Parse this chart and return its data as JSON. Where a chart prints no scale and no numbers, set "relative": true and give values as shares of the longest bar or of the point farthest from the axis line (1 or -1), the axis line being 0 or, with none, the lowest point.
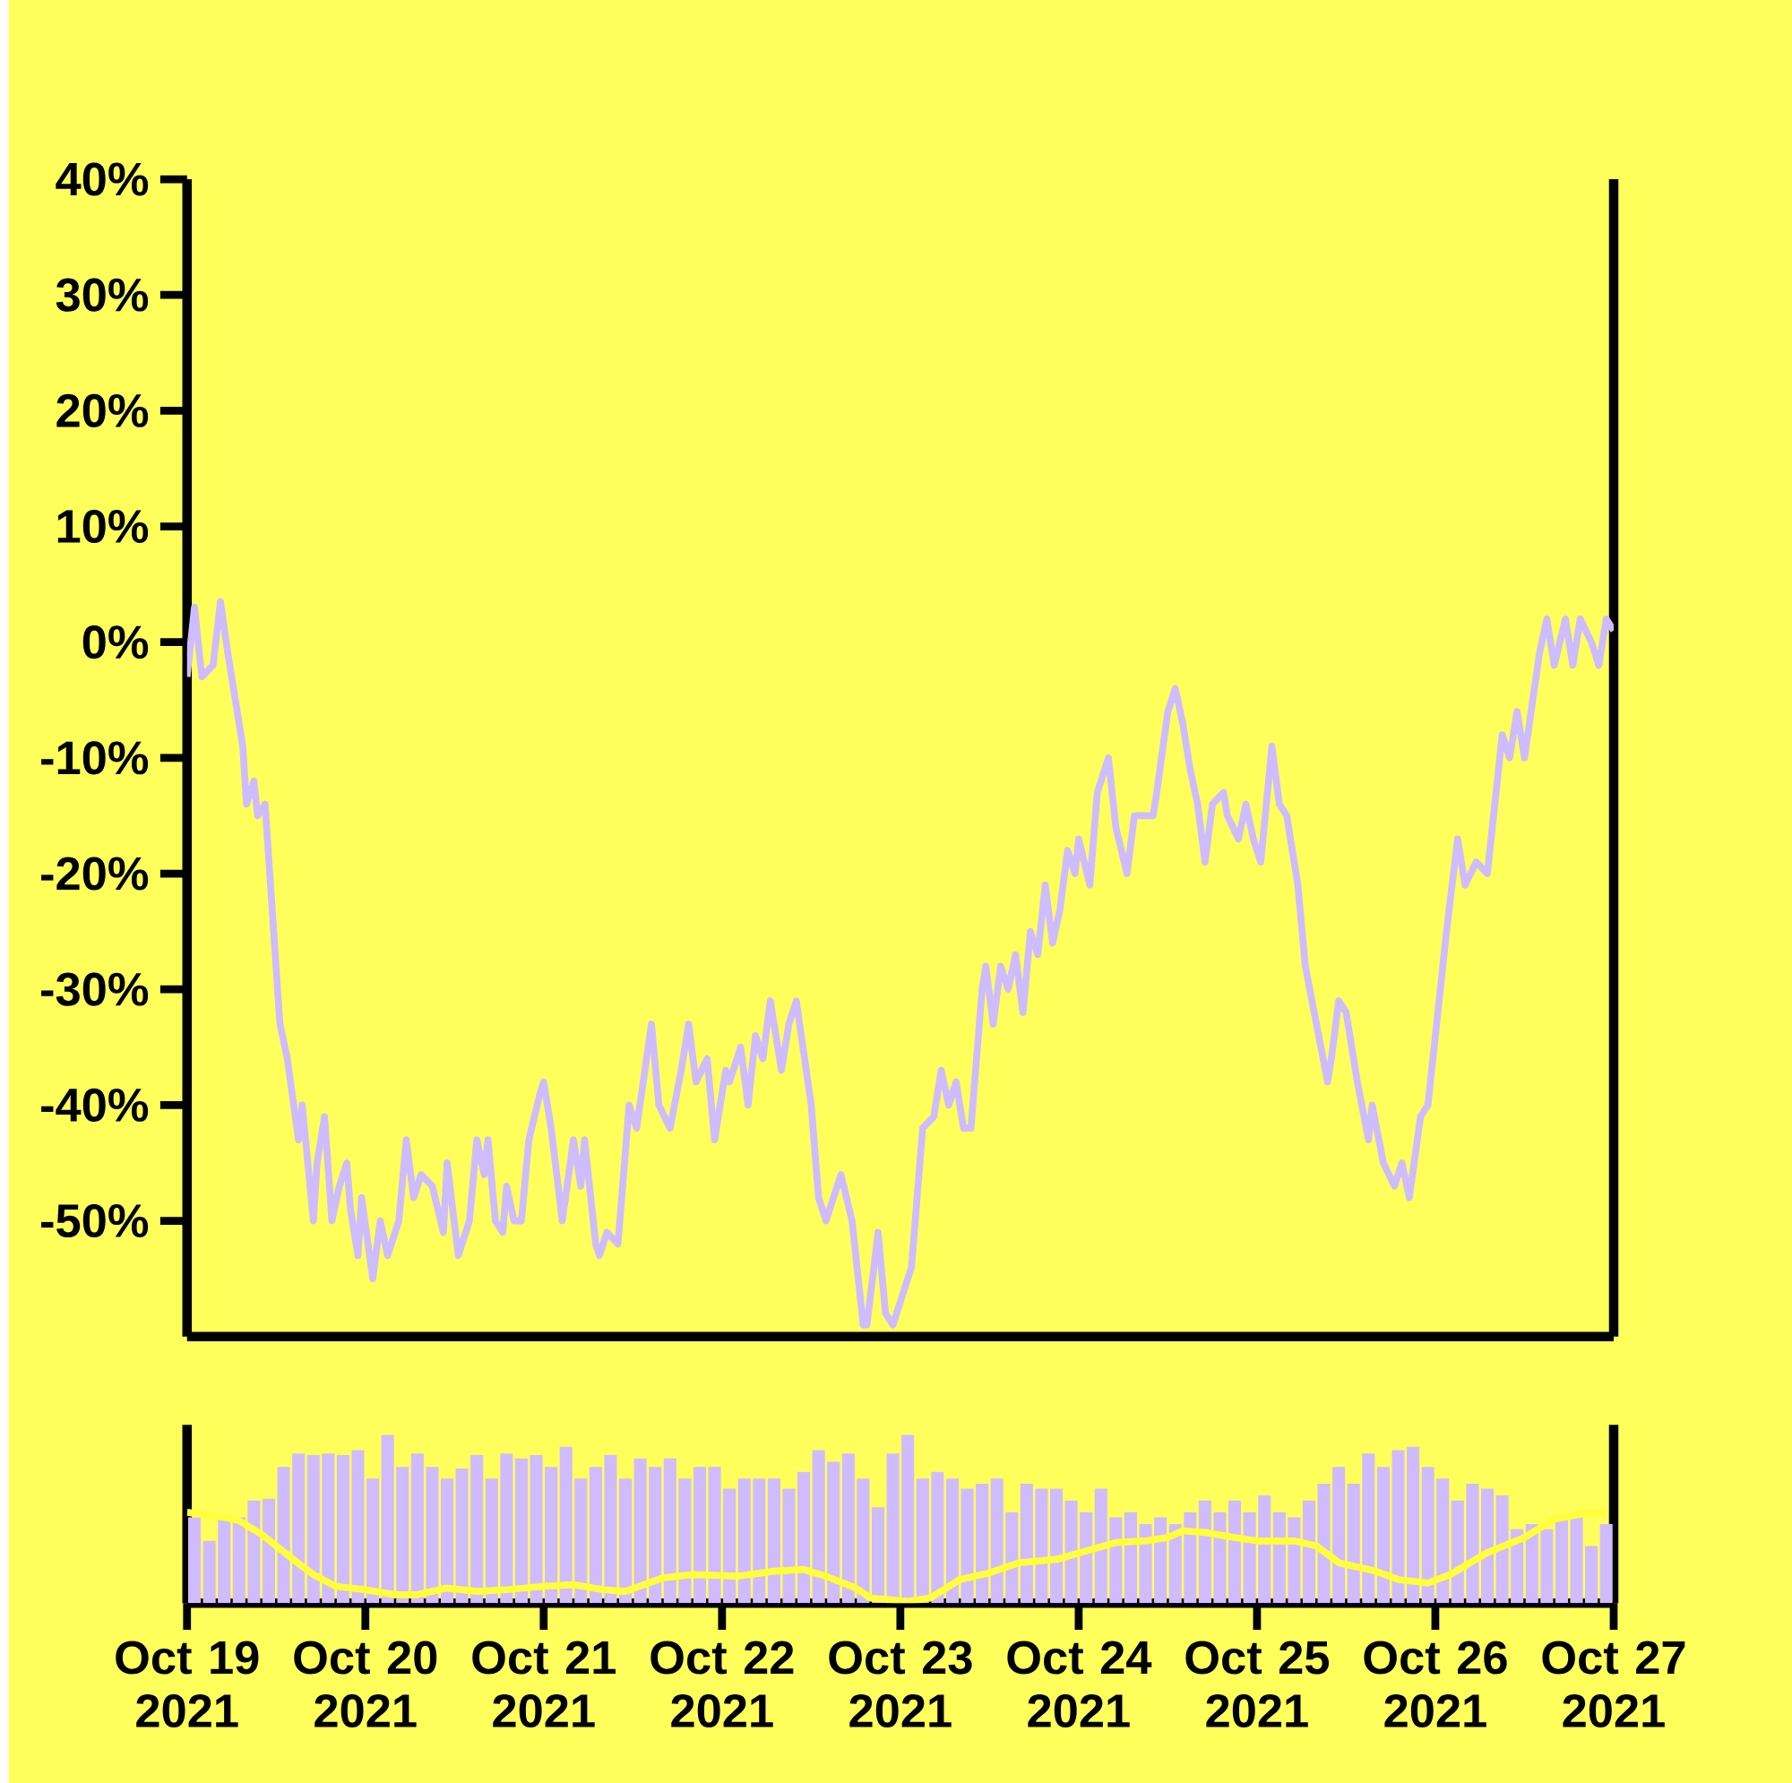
{
  "chart_data": [
    {
      "type": "line",
      "xlim": [
        "2021-10-19T00:00",
        "2021-10-27T00:00"
      ],
      "ylim": [
        -60,
        40
      ],
      "yticks": [
        {
          "value": 40,
          "label": "40%"
        },
        {
          "value": 30,
          "label": "30%"
        },
        {
          "value": 20,
          "label": "20%"
        },
        {
          "value": 10,
          "label": "10%"
        },
        {
          "value": 0,
          "label": "0%"
        },
        {
          "value": -10,
          "label": "-10%"
        },
        {
          "value": -20,
          "label": "-20%"
        },
        {
          "value": -30,
          "label": "-30%"
        },
        {
          "value": -40,
          "label": "-40%"
        },
        {
          "value": -50,
          "label": "-50%"
        }
      ],
      "tick_labels": "y",
      "series": [
        {
          "color": "#cfbcff",
          "x": [
            "2021-10-19T00:00",
            "2021-10-19T01:00",
            "2021-10-19T02:00",
            "2021-10-19T03:30",
            "2021-10-19T04:30",
            "2021-10-19T05:30",
            "2021-10-19T07:30",
            "2021-10-19T08:00",
            "2021-10-19T09:00",
            "2021-10-19T09:30",
            "2021-10-19T10:30",
            "2021-10-19T12:30",
            "2021-10-19T13:30",
            "2021-10-19T15:00",
            "2021-10-19T15:30",
            "2021-10-19T17:00",
            "2021-10-19T17:30",
            "2021-10-19T18:30",
            "2021-10-19T19:30",
            "2021-10-19T20:30",
            "2021-10-19T21:30",
            "2021-10-19T22:00",
            "2021-10-19T23:00",
            "2021-10-19T23:30",
            "2021-10-20T01:00",
            "2021-10-20T02:00",
            "2021-10-20T03:00",
            "2021-10-20T04:30",
            "2021-10-20T05:30",
            "2021-10-20T06:30",
            "2021-10-20T07:30",
            "2021-10-20T09:00",
            "2021-10-20T10:30",
            "2021-10-20T11:00",
            "2021-10-20T12:30",
            "2021-10-20T14:00",
            "2021-10-20T15:00",
            "2021-10-20T16:00",
            "2021-10-20T16:30",
            "2021-10-20T17:30",
            "2021-10-20T18:30",
            "2021-10-20T19:00",
            "2021-10-20T20:00",
            "2021-10-20T21:00",
            "2021-10-20T22:00",
            "2021-10-20T23:30",
            "2021-10-21T00:00",
            "2021-10-21T01:00",
            "2021-10-21T02:30",
            "2021-10-21T04:00",
            "2021-10-21T05:00",
            "2021-10-21T05:30",
            "2021-10-21T07:00",
            "2021-10-21T07:30",
            "2021-10-21T08:30",
            "2021-10-21T10:00",
            "2021-10-21T11:30",
            "2021-10-21T12:30",
            "2021-10-21T14:30",
            "2021-10-21T15:30",
            "2021-10-21T17:00",
            "2021-10-21T18:30",
            "2021-10-21T19:30",
            "2021-10-21T20:30",
            "2021-10-21T22:00",
            "2021-10-21T23:00",
            "2021-10-22T00:30",
            "2021-10-22T01:00",
            "2021-10-22T02:30",
            "2021-10-22T03:30",
            "2021-10-22T04:30",
            "2021-10-22T05:30",
            "2021-10-22T06:30",
            "2021-10-22T08:00",
            "2021-10-22T09:00",
            "2021-10-22T10:00",
            "2021-10-22T12:00",
            "2021-10-22T13:00",
            "2021-10-22T14:00",
            "2021-10-22T16:00",
            "2021-10-22T17:30",
            "2021-10-22T19:00",
            "2021-10-22T19:30",
            "2021-10-22T21:00",
            "2021-10-22T22:00",
            "2021-10-22T23:00",
            "2021-10-23T00:00",
            "2021-10-23T01:30",
            "2021-10-23T03:00",
            "2021-10-23T04:30",
            "2021-10-23T05:30",
            "2021-10-23T06:30",
            "2021-10-23T07:30",
            "2021-10-23T08:30",
            "2021-10-23T09:30",
            "2021-10-23T11:00",
            "2021-10-23T11:30",
            "2021-10-23T12:30",
            "2021-10-23T13:30",
            "2021-10-23T14:30",
            "2021-10-23T15:30",
            "2021-10-23T16:30",
            "2021-10-23T17:30",
            "2021-10-23T18:30",
            "2021-10-23T19:30",
            "2021-10-23T20:30",
            "2021-10-23T21:30",
            "2021-10-23T22:30",
            "2021-10-23T23:30",
            "2021-10-24T00:00",
            "2021-10-24T01:30",
            "2021-10-24T02:30",
            "2021-10-24T03:00",
            "2021-10-24T04:00",
            "2021-10-24T05:00",
            "2021-10-24T06:30",
            "2021-10-24T07:30",
            "2021-10-24T10:00",
            "2021-10-24T10:30",
            "2021-10-24T12:00",
            "2021-10-24T13:00",
            "2021-10-24T14:00",
            "2021-10-24T15:00",
            "2021-10-24T16:00",
            "2021-10-24T17:00",
            "2021-10-24T18:00",
            "2021-10-24T19:30",
            "2021-10-24T20:00",
            "2021-10-24T21:30",
            "2021-10-24T22:30",
            "2021-10-24T23:30",
            "2021-10-25T00:30",
            "2021-10-25T02:00",
            "2021-10-25T03:00",
            "2021-10-25T04:00",
            "2021-10-25T05:30",
            "2021-10-25T06:30",
            "2021-10-25T08:00",
            "2021-10-25T09:30",
            "2021-10-25T10:00",
            "2021-10-25T11:00",
            "2021-10-25T12:00",
            "2021-10-25T13:30",
            "2021-10-25T15:00",
            "2021-10-25T15:30",
            "2021-10-25T17:00",
            "2021-10-25T18:30",
            "2021-10-25T19:30",
            "2021-10-25T20:30",
            "2021-10-25T22:00",
            "2021-10-25T23:00",
            "2021-10-26T00:30",
            "2021-10-26T01:30",
            "2021-10-26T03:00",
            "2021-10-26T04:00",
            "2021-10-26T05:30",
            "2021-10-26T07:00",
            "2021-10-26T09:00",
            "2021-10-26T10:00",
            "2021-10-26T11:00",
            "2021-10-26T12:00",
            "2021-10-26T14:00",
            "2021-10-26T15:00",
            "2021-10-26T16:00",
            "2021-10-26T17:30",
            "2021-10-26T18:30",
            "2021-10-26T19:30",
            "2021-10-26T21:00",
            "2021-10-26T22:00",
            "2021-10-26T23:00",
            "2021-10-27T00:00"
          ],
          "values": [
            -3,
            3,
            -3,
            -2,
            3.5,
            -1,
            -9,
            -14,
            -12,
            -15,
            -14,
            -33,
            -36,
            -43,
            -40,
            -50,
            -45,
            -41,
            -50,
            -47,
            -45,
            -49,
            -53,
            -48,
            -55,
            -50,
            -53,
            -50,
            -43,
            -48,
            -46,
            -47,
            -51,
            -45,
            -53,
            -50,
            -43,
            -46,
            -43,
            -50,
            -51,
            -47,
            -50,
            -50,
            -43,
            -39,
            -38,
            -42,
            -50,
            -43,
            -47,
            -43,
            -52,
            -53,
            -51,
            -52,
            -40,
            -42,
            -33,
            -40,
            -42,
            -37,
            -33,
            -38,
            -36,
            -43,
            -37,
            -38,
            -35,
            -40,
            -34,
            -36,
            -31,
            -37,
            -33,
            -31,
            -40,
            -48,
            -50,
            -46,
            -50,
            -59,
            -59,
            -51,
            -58,
            -59,
            -57,
            -54,
            -42,
            -41,
            -37,
            -40,
            -38,
            -42,
            -42,
            -30,
            -28,
            -33,
            -28,
            -30,
            -27,
            -32,
            -25,
            -27,
            -21,
            -26,
            -23,
            -18,
            -20,
            -17,
            -21,
            -13,
            -12,
            -10,
            -16,
            -20,
            -15,
            -15,
            -13,
            -6,
            -4,
            -7,
            -11,
            -14,
            -19,
            -14,
            -13,
            -15,
            -17,
            -14,
            -17,
            -19,
            -9,
            -14,
            -15,
            -21,
            -28,
            -33,
            -38,
            -36,
            -31,
            -32,
            -38,
            -43,
            -40,
            -45,
            -47,
            -45,
            -48,
            -41,
            -40,
            -31,
            -25,
            -17,
            -21,
            -19,
            -20,
            -8,
            -10,
            -6,
            -10,
            -1,
            2,
            -2,
            2,
            -2,
            2,
            0,
            -2,
            2,
            1
          ]
        }
      ]
    },
    {
      "type": "bar",
      "relative": true,
      "xlim": [
        "2021-10-19T00:00",
        "2021-10-27T00:00"
      ],
      "xticks": [
        {
          "value": "2021-10-19",
          "label": "Oct 19 2021"
        },
        {
          "value": "2021-10-20",
          "label": "Oct 20 2021"
        },
        {
          "value": "2021-10-21",
          "label": "Oct 21 2021"
        },
        {
          "value": "2021-10-22",
          "label": "Oct 22 2021"
        },
        {
          "value": "2021-10-23",
          "label": "Oct 23 2021"
        },
        {
          "value": "2021-10-24",
          "label": "Oct 24 2021"
        },
        {
          "value": "2021-10-25",
          "label": "Oct 25 2021"
        },
        {
          "value": "2021-10-26",
          "label": "Oct 26 2021"
        },
        {
          "value": "2021-10-27",
          "label": "Oct 27 2021"
        }
      ],
      "tick_labels": "x",
      "series": [
        {
          "type": "bar",
          "color": "#d1bbff",
          "x": [
            "2021-10-19T01:00",
            "2021-10-19T03:00",
            "2021-10-19T05:00",
            "2021-10-19T07:00",
            "2021-10-19T09:00",
            "2021-10-19T11:00",
            "2021-10-19T13:00",
            "2021-10-19T15:00",
            "2021-10-19T17:00",
            "2021-10-19T19:00",
            "2021-10-19T21:00",
            "2021-10-19T23:00",
            "2021-10-20T01:00",
            "2021-10-20T03:00",
            "2021-10-20T05:00",
            "2021-10-20T07:00",
            "2021-10-20T09:00",
            "2021-10-20T11:00",
            "2021-10-20T13:00",
            "2021-10-20T15:00",
            "2021-10-20T17:00",
            "2021-10-20T19:00",
            "2021-10-20T21:00",
            "2021-10-20T23:00",
            "2021-10-21T01:00",
            "2021-10-21T03:00",
            "2021-10-21T05:00",
            "2021-10-21T07:00",
            "2021-10-21T09:00",
            "2021-10-21T11:00",
            "2021-10-21T13:00",
            "2021-10-21T15:00",
            "2021-10-21T17:00",
            "2021-10-21T19:00",
            "2021-10-21T21:00",
            "2021-10-21T23:00",
            "2021-10-22T01:00",
            "2021-10-22T03:00",
            "2021-10-22T05:00",
            "2021-10-22T07:00",
            "2021-10-22T09:00",
            "2021-10-22T11:00",
            "2021-10-22T13:00",
            "2021-10-22T15:00",
            "2021-10-22T17:00",
            "2021-10-22T19:00",
            "2021-10-22T21:00",
            "2021-10-22T23:00",
            "2021-10-23T01:00",
            "2021-10-23T03:00",
            "2021-10-23T05:00",
            "2021-10-23T07:00",
            "2021-10-23T09:00",
            "2021-10-23T11:00",
            "2021-10-23T13:00",
            "2021-10-23T15:00",
            "2021-10-23T17:00",
            "2021-10-23T19:00",
            "2021-10-23T21:00",
            "2021-10-23T23:00",
            "2021-10-24T01:00",
            "2021-10-24T03:00",
            "2021-10-24T05:00",
            "2021-10-24T07:00",
            "2021-10-24T09:00",
            "2021-10-24T11:00",
            "2021-10-24T13:00",
            "2021-10-24T15:00",
            "2021-10-24T17:00",
            "2021-10-24T19:00",
            "2021-10-24T21:00",
            "2021-10-24T23:00",
            "2021-10-25T01:00",
            "2021-10-25T03:00",
            "2021-10-25T05:00",
            "2021-10-25T07:00",
            "2021-10-25T09:00",
            "2021-10-25T11:00",
            "2021-10-25T13:00",
            "2021-10-25T15:00",
            "2021-10-25T17:00",
            "2021-10-25T19:00",
            "2021-10-25T21:00",
            "2021-10-25T23:00",
            "2021-10-26T01:00",
            "2021-10-26T03:00",
            "2021-10-26T05:00",
            "2021-10-26T07:00",
            "2021-10-26T09:00",
            "2021-10-26T11:00",
            "2021-10-26T13:00",
            "2021-10-26T15:00",
            "2021-10-26T17:00",
            "2021-10-26T19:00",
            "2021-10-26T21:00",
            "2021-10-26T23:00"
          ],
          "values": [
            0.51,
            0.37,
            0.51,
            0.51,
            0.61,
            0.62,
            0.81,
            0.89,
            0.88,
            0.89,
            0.88,
            0.91,
            0.74,
            1.0,
            0.81,
            0.89,
            0.81,
            0.74,
            0.8,
            0.88,
            0.74,
            0.89,
            0.86,
            0.88,
            0.81,
            0.93,
            0.74,
            0.81,
            0.88,
            0.74,
            0.86,
            0.81,
            0.86,
            0.74,
            0.81,
            0.81,
            0.68,
            0.74,
            0.74,
            0.74,
            0.68,
            0.78,
            0.91,
            0.84,
            0.89,
            0.74,
            0.57,
            0.89,
            1.0,
            0.74,
            0.78,
            0.74,
            0.68,
            0.71,
            0.74,
            0.54,
            0.71,
            0.68,
            0.68,
            0.61,
            0.54,
            0.68,
            0.51,
            0.54,
            0.47,
            0.51,
            0.47,
            0.54,
            0.61,
            0.54,
            0.61,
            0.54,
            0.64,
            0.54,
            0.51,
            0.61,
            0.71,
            0.81,
            0.71,
            0.89,
            0.81,
            0.91,
            0.93,
            0.81,
            0.74,
            0.61,
            0.71,
            0.68,
            0.64,
            0.44,
            0.47,
            0.44,
            0.51,
            0.51,
            0.34,
            0.47
          ]
        },
        {
          "type": "line",
          "color": "#ffff3c",
          "x": [
            "2021-10-19T00:00",
            "2021-10-19T05:00",
            "2021-10-19T07:00",
            "2021-10-19T10:00",
            "2021-10-19T14:00",
            "2021-10-19T17:00",
            "2021-10-19T20:00",
            "2021-10-20T00:00",
            "2021-10-20T04:00",
            "2021-10-20T07:00",
            "2021-10-20T11:00",
            "2021-10-20T15:00",
            "2021-10-20T19:00",
            "2021-10-21T00:00",
            "2021-10-21T04:00",
            "2021-10-21T08:00",
            "2021-10-21T11:00",
            "2021-10-21T16:00",
            "2021-10-21T20:00",
            "2021-10-22T02:00",
            "2021-10-22T07:00",
            "2021-10-22T11:00",
            "2021-10-22T14:00",
            "2021-10-22T18:00",
            "2021-10-22T20:00",
            "2021-10-23T01:00",
            "2021-10-23T04:00",
            "2021-10-23T08:00",
            "2021-10-23T12:00",
            "2021-10-23T16:00",
            "2021-10-23T21:00",
            "2021-10-24T01:00",
            "2021-10-24T05:00",
            "2021-10-24T09:00",
            "2021-10-24T12:00",
            "2021-10-24T14:00",
            "2021-10-24T17:00",
            "2021-10-24T21:00",
            "2021-10-25T00:00",
            "2021-10-25T05:00",
            "2021-10-25T08:00",
            "2021-10-25T11:00",
            "2021-10-25T16:00",
            "2021-10-25T19:00",
            "2021-10-25T23:00",
            "2021-10-26T02:00",
            "2021-10-26T07:00",
            "2021-10-26T12:00",
            "2021-10-26T16:00",
            "2021-10-26T21:00",
            "2021-10-26T23:00"
          ],
          "values": [
            0.54,
            0.51,
            0.49,
            0.41,
            0.27,
            0.17,
            0.1,
            0.08,
            0.05,
            0.05,
            0.09,
            0.07,
            0.08,
            0.1,
            0.11,
            0.08,
            0.07,
            0.15,
            0.17,
            0.16,
            0.19,
            0.2,
            0.16,
            0.09,
            0.03,
            0.01,
            0.03,
            0.14,
            0.18,
            0.24,
            0.26,
            0.31,
            0.36,
            0.37,
            0.39,
            0.43,
            0.42,
            0.39,
            0.37,
            0.37,
            0.34,
            0.24,
            0.19,
            0.14,
            0.12,
            0.17,
            0.3,
            0.39,
            0.5,
            0.54,
            0.53
          ]
        }
      ]
    }
  ]
}
